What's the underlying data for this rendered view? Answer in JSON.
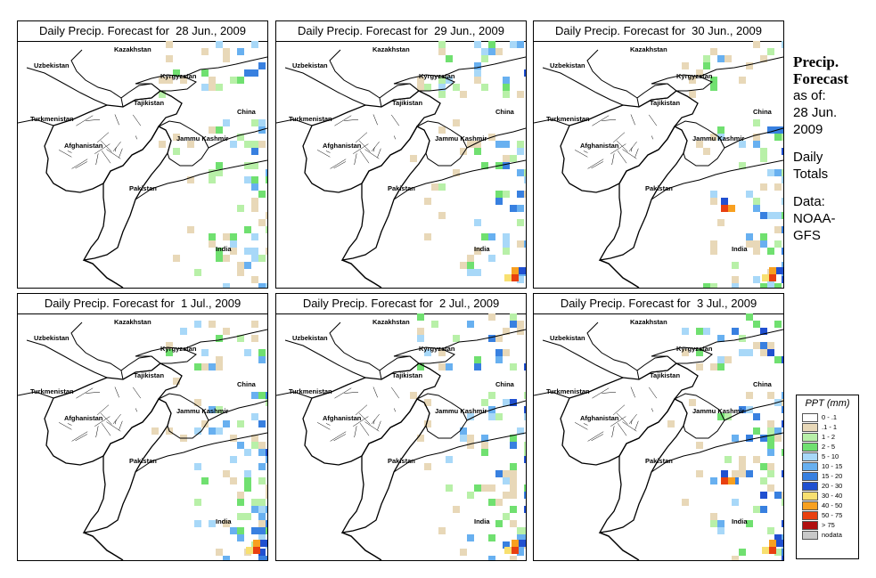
{
  "panels": [
    {
      "title": "Daily Precip. Forecast for  28 Jun., 2009"
    },
    {
      "title": "Daily Precip. Forecast for  29 Jun., 2009"
    },
    {
      "title": "Daily Precip. Forecast for  30 Jun., 2009"
    },
    {
      "title": "Daily Precip. Forecast for  1 Jul., 2009"
    },
    {
      "title": "Daily Precip. Forecast for  2 Jul., 2009"
    },
    {
      "title": "Daily Precip. Forecast for  3 Jul., 2009"
    }
  ],
  "map_labels": {
    "kazakhstan": "Kazakhstan",
    "uzbekistan": "Uzbekistan",
    "kyrgyzstan": "Kyrgyzstan",
    "tajikistan": "Tajikistan",
    "china": "China",
    "turkmenistan": "Turkmenistan",
    "jammu_kashmir": "Jammu Kashmir",
    "afghanistan": "Afghanistan",
    "pakistan": "Pakistan",
    "india": "India"
  },
  "side": {
    "title_line1": "Precip.",
    "title_line2": "Forecast",
    "asof_line1": "as of:",
    "asof_line2": "28 Jun.",
    "asof_line3": "2009",
    "daily_line1": "Daily",
    "daily_line2": "Totals",
    "data_line1": "Data:",
    "data_line2": "NOAA-",
    "data_line3": "GFS"
  },
  "legend": {
    "title": "PPT (mm)",
    "items": [
      {
        "label": "0 - .1",
        "color": "#ffffff"
      },
      {
        "label": ".1 - 1",
        "color": "#e8d8b8"
      },
      {
        "label": "1 - 2",
        "color": "#b8f0a8"
      },
      {
        "label": "2 - 5",
        "color": "#70e070"
      },
      {
        "label": "5 - 10",
        "color": "#a8d8f8"
      },
      {
        "label": "10 - 15",
        "color": "#68b0f0"
      },
      {
        "label": "15 - 20",
        "color": "#3880e0"
      },
      {
        "label": "20 - 30",
        "color": "#2050d0"
      },
      {
        "label": "30 - 40",
        "color": "#f8e070"
      },
      {
        "label": "40 - 50",
        "color": "#f8a020"
      },
      {
        "label": "50 - 75",
        "color": "#e84010"
      },
      {
        "label": "> 75",
        "color": "#b01010"
      },
      {
        "label": "nodata",
        "color": "#c8c8c8"
      }
    ]
  }
}
